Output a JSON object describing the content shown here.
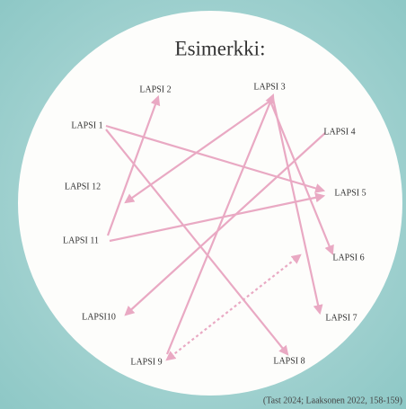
{
  "title": "Esimerkki:",
  "nodes": [
    {
      "label": "LAPSI 1"
    },
    {
      "label": "LAPSI 2"
    },
    {
      "label": "LAPSI 3"
    },
    {
      "label": "LAPSI 4"
    },
    {
      "label": "LAPSI 5"
    },
    {
      "label": "LAPSI 6"
    },
    {
      "label": "LAPSI 7"
    },
    {
      "label": "LAPSI 8"
    },
    {
      "label": "LAPSI 9"
    },
    {
      "label": "LAPSI10"
    },
    {
      "label": "LAPSI 11"
    },
    {
      "label": "LAPSI 12"
    }
  ],
  "caption": "(Tast 2024; Laaksonen 2022, 158-159)"
}
